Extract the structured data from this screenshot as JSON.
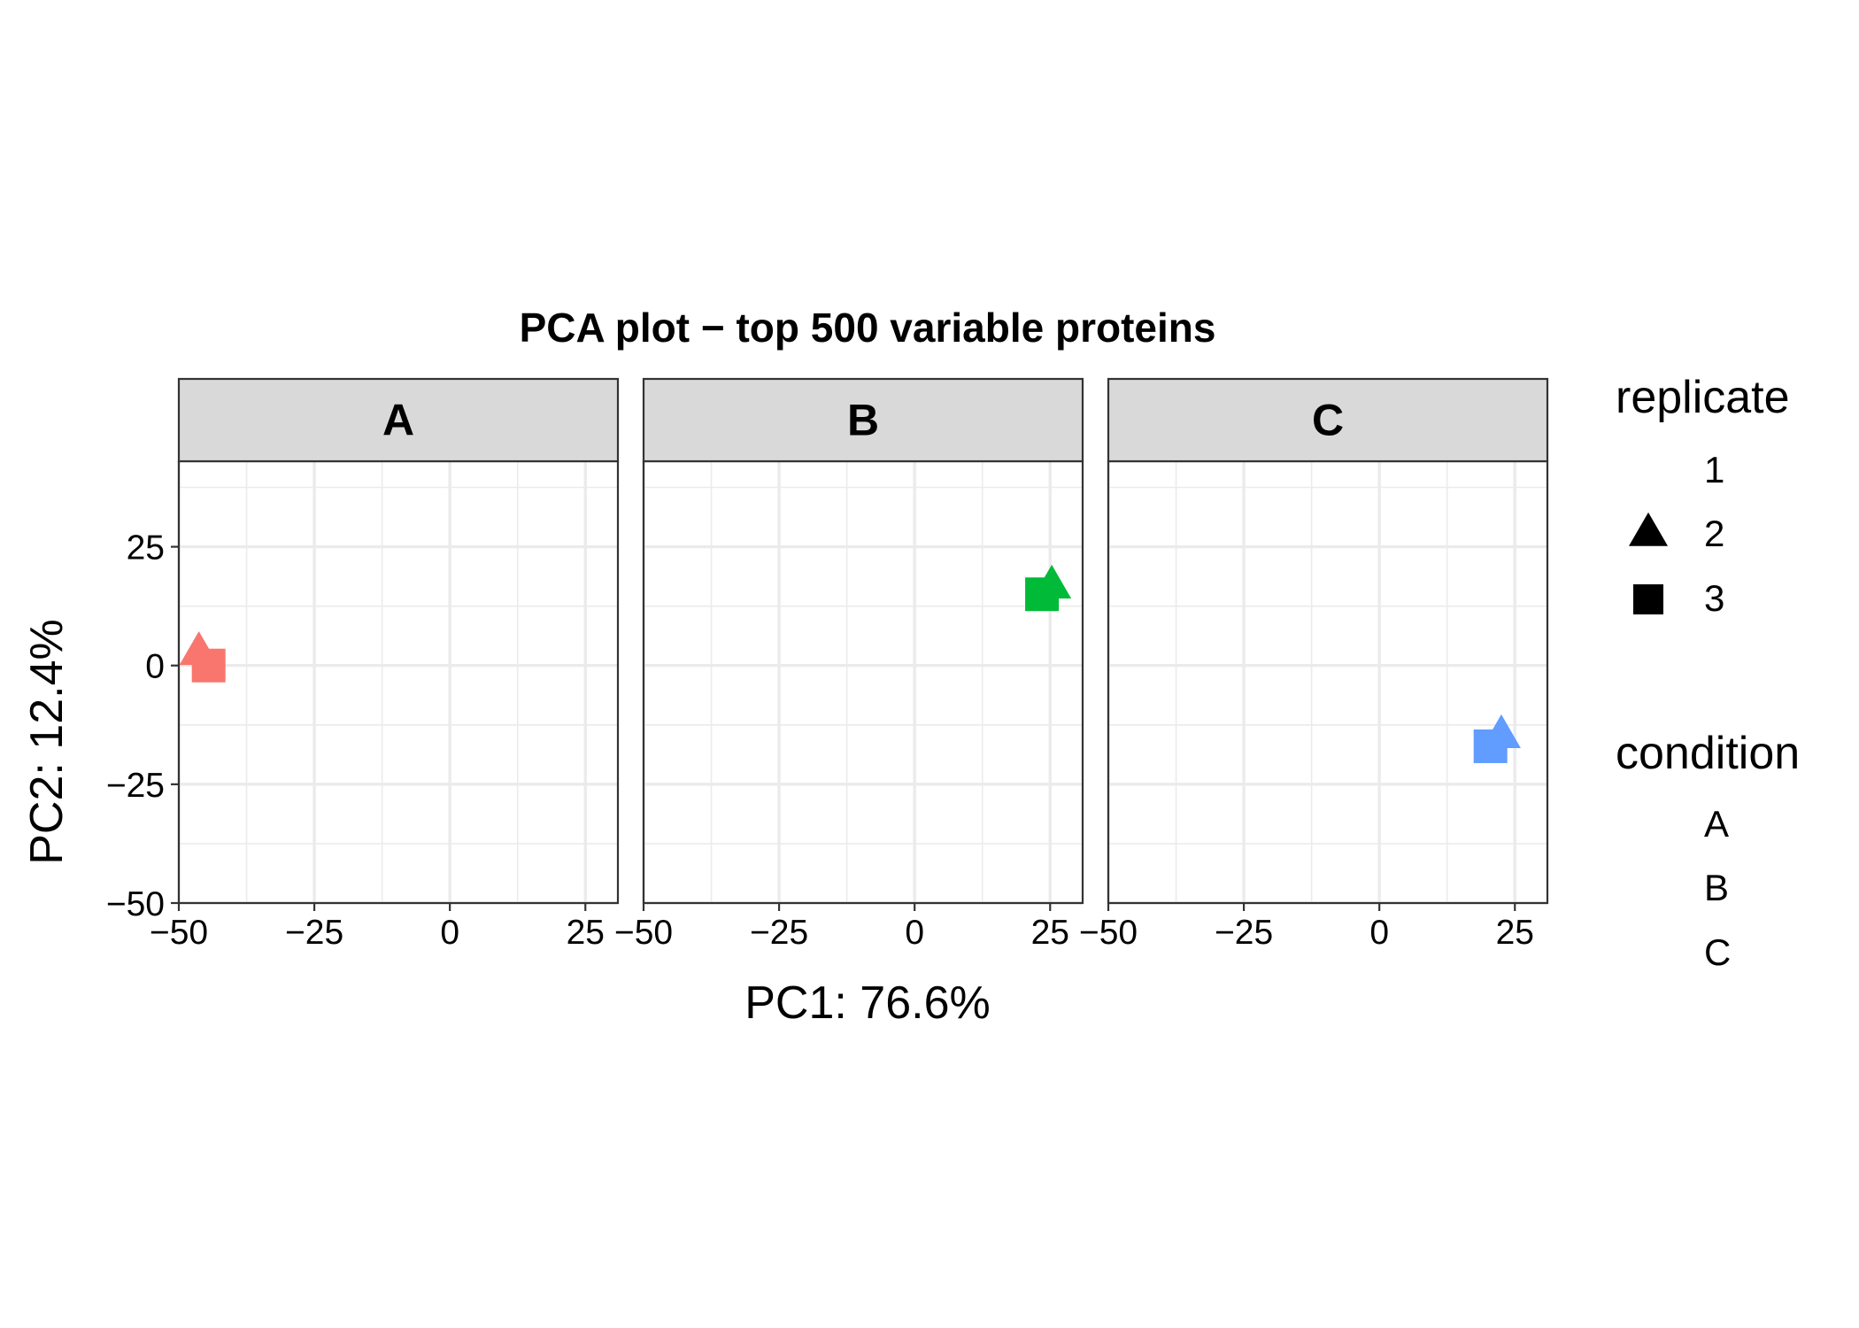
{
  "chart_data": {
    "type": "scatter",
    "title": "PCA plot − top 500 variable proteins",
    "xlabel": "PC1: 76.6%",
    "ylabel": "PC2: 12.4%",
    "xlim": [
      -50,
      31
    ],
    "ylim": [
      -50,
      43
    ],
    "x_major_ticks": [
      -50,
      -25,
      0,
      25
    ],
    "x_tick_labels": [
      "−50",
      "−25",
      "0",
      "25"
    ],
    "y_major_ticks": [
      -50,
      -25,
      0,
      25
    ],
    "y_tick_labels": [
      "−50",
      "−25",
      "0",
      "25"
    ],
    "grid": true,
    "facet_by": "condition",
    "facets": [
      {
        "label": "A",
        "color": "#F8766D",
        "points": [
          {
            "replicate": "2",
            "shape": "triangle",
            "x": -46.3,
            "y": 2.5
          },
          {
            "replicate": "3",
            "shape": "square",
            "x": -44.5,
            "y": 0.0
          }
        ]
      },
      {
        "label": "B",
        "color": "#00BA38",
        "points": [
          {
            "replicate": "2",
            "shape": "triangle",
            "x": 25.3,
            "y": 16.5
          },
          {
            "replicate": "3",
            "shape": "square",
            "x": 23.5,
            "y": 15.0
          }
        ]
      },
      {
        "label": "C",
        "color": "#619CFF",
        "points": [
          {
            "replicate": "2",
            "shape": "triangle",
            "x": 22.5,
            "y": -15.0
          },
          {
            "replicate": "3",
            "shape": "square",
            "x": 20.5,
            "y": -17.0
          }
        ]
      }
    ],
    "legend": {
      "placement": "right",
      "replicate": {
        "title": "replicate",
        "items": [
          {
            "label": "1",
            "shape": "none"
          },
          {
            "label": "2",
            "shape": "triangle"
          },
          {
            "label": "3",
            "shape": "square"
          }
        ]
      },
      "condition": {
        "title": "condition",
        "items": [
          {
            "label": "A"
          },
          {
            "label": "B"
          },
          {
            "label": "C"
          }
        ]
      }
    }
  }
}
